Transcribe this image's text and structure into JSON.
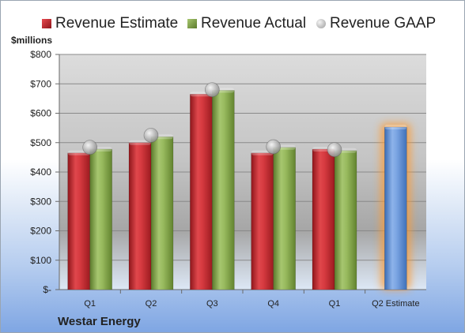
{
  "company": "Westar Energy",
  "unit_label": "$millions",
  "legend": [
    {
      "label": "Revenue Estimate",
      "color": "#c0282e",
      "marker": "square"
    },
    {
      "label": "Revenue Actual",
      "color": "#7ea04a",
      "marker": "square"
    },
    {
      "label": "Revenue GAAP",
      "color": "#b8b8b8",
      "marker": "circle"
    }
  ],
  "chart_data": {
    "type": "bar",
    "categories": [
      "Q1",
      "Q2",
      "Q3",
      "Q4",
      "Q1",
      "Q2 Estimate"
    ],
    "series": [
      {
        "name": "Revenue Estimate",
        "values": [
          465,
          500,
          665,
          465,
          478,
          null
        ],
        "color": "#c0282e"
      },
      {
        "name": "Revenue Actual",
        "values": [
          478,
          520,
          678,
          484,
          473,
          null
        ],
        "color": "#7ea04a"
      },
      {
        "name": "Revenue GAAP",
        "values": [
          484,
          525,
          680,
          486,
          476,
          null
        ],
        "color": "#b8b8b8",
        "marker": "circle"
      },
      {
        "name": "Q2 Estimate",
        "values": [
          null,
          null,
          null,
          null,
          null,
          553
        ],
        "color": "#5b8fd6",
        "highlight": true
      }
    ],
    "y_ticks": [
      "$-",
      "$100",
      "$200",
      "$300",
      "$400",
      "$500",
      "$600",
      "$700",
      "$800"
    ],
    "ylim": [
      0,
      800
    ],
    "grid": true,
    "legend_position": "top"
  }
}
